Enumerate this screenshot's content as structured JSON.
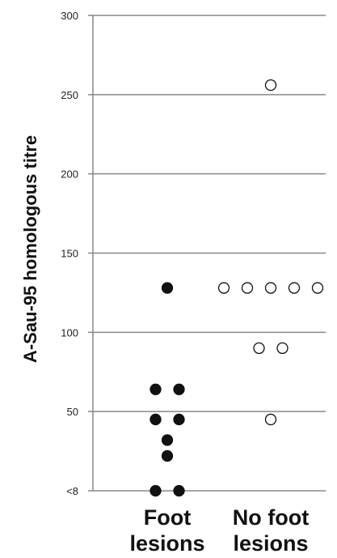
{
  "chart_data": {
    "type": "scatter",
    "ylabel": "A-Sau-95 homologous titre",
    "y_ticks": [
      {
        "value": 0,
        "label": "<8"
      },
      {
        "value": 50,
        "label": "50"
      },
      {
        "value": 100,
        "label": "100"
      },
      {
        "value": 150,
        "label": "150"
      },
      {
        "value": 200,
        "label": "200"
      },
      {
        "value": 250,
        "label": "250"
      },
      {
        "value": 300,
        "label": "300"
      }
    ],
    "ylim": [
      0,
      300
    ],
    "grid": true,
    "categories": [
      {
        "label_lines": [
          "Foot",
          "lesions"
        ]
      },
      {
        "label_lines": [
          "No foot",
          "lesions"
        ]
      }
    ],
    "series": [
      {
        "category": 0,
        "marker": "filled",
        "color": "#111111",
        "values": [
          128,
          64,
          64,
          45,
          45,
          32,
          22,
          0,
          0
        ]
      },
      {
        "category": 1,
        "marker": "open",
        "color": "#111111",
        "values": [
          256,
          128,
          128,
          128,
          128,
          128,
          90,
          90,
          45
        ]
      }
    ]
  }
}
